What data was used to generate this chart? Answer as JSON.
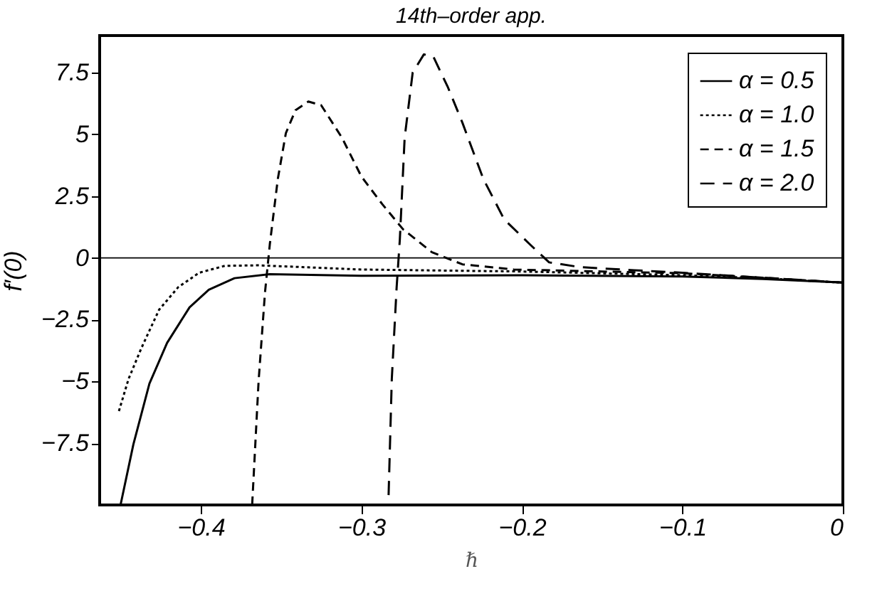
{
  "chart_data": {
    "type": "line",
    "title": "14th–order app.",
    "xlabel": "ℏ",
    "ylabel": "f′(0)",
    "xlim": [
      -0.463,
      0
    ],
    "ylim": [
      -10,
      9
    ],
    "xticks": [
      -0.4,
      -0.3,
      -0.2,
      -0.1,
      0
    ],
    "yticks": [
      -7.5,
      -5,
      -2.5,
      0,
      2.5,
      5,
      7.5
    ],
    "grid": false,
    "legend": "top right",
    "marker": "none",
    "ref_lines": [
      {
        "axis": "y",
        "value": 0,
        "label": null
      }
    ],
    "series": [
      {
        "name": "α = 0.5",
        "color": "#000000",
        "line_style": "solid",
        "x": [
          -0.45,
          -0.442,
          -0.432,
          -0.421,
          -0.407,
          -0.395,
          -0.379,
          -0.357,
          -0.3,
          -0.2,
          -0.1,
          -0.05,
          0
        ],
        "values": [
          -10,
          -7.55,
          -5.09,
          -3.44,
          -2.0,
          -1.29,
          -0.82,
          -0.66,
          -0.72,
          -0.7,
          -0.75,
          -0.85,
          -1.0
        ]
      },
      {
        "name": "α = 1.0",
        "color": "#000000",
        "line_style": "dotted",
        "x": [
          -0.451,
          -0.445,
          -0.437,
          -0.426,
          -0.414,
          -0.401,
          -0.385,
          -0.364,
          -0.3,
          -0.2,
          -0.1,
          -0.05,
          0
        ],
        "values": [
          -6.2,
          -4.9,
          -3.65,
          -2.1,
          -1.18,
          -0.6,
          -0.32,
          -0.3,
          -0.47,
          -0.55,
          -0.7,
          -0.82,
          -1.0
        ]
      },
      {
        "name": "α = 1.5",
        "color": "#000000",
        "line_style": "dashed",
        "x": [
          -0.368,
          -0.364,
          -0.36,
          -0.357,
          -0.352,
          -0.347,
          -0.341,
          -0.333,
          -0.325,
          -0.312,
          -0.3,
          -0.287,
          -0.274,
          -0.256,
          -0.237,
          -0.205,
          -0.15,
          -0.1,
          -0.05,
          0
        ],
        "values": [
          -10,
          -5,
          -1.4,
          0.55,
          3.2,
          5.05,
          5.98,
          6.33,
          6.18,
          4.86,
          3.3,
          2.18,
          1.16,
          0.23,
          -0.26,
          -0.47,
          -0.55,
          -0.62,
          -0.8,
          -1.0
        ]
      },
      {
        "name": "α = 2.0",
        "color": "#000000",
        "line_style": "dashed",
        "x": [
          -0.283,
          -0.281,
          -0.278,
          -0.276,
          -0.273,
          -0.268,
          -0.261,
          -0.255,
          -0.246,
          -0.237,
          -0.224,
          -0.211,
          -0.195,
          -0.183,
          -0.164,
          -0.13,
          -0.1,
          -0.05,
          0
        ],
        "values": [
          -9.6,
          -4.9,
          -1.2,
          0.74,
          4.86,
          7.5,
          8.24,
          8.13,
          6.9,
          5.47,
          3.2,
          1.56,
          0.55,
          -0.18,
          -0.37,
          -0.5,
          -0.6,
          -0.8,
          -1.0
        ]
      }
    ]
  }
}
